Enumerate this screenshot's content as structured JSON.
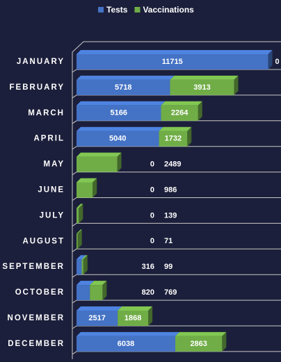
{
  "chart_data": {
    "type": "bar",
    "orientation": "horizontal",
    "stacked": true,
    "categories": [
      "JANUARY",
      "FEBRUARY",
      "MARCH",
      "APRIL",
      "MAY",
      "JUNE",
      "JULY",
      "AUGUST",
      "SEPTEMBER",
      "OCTOBER",
      "NOVEMBER",
      "DECEMBER"
    ],
    "series": [
      {
        "name": "Tests",
        "color": "#4472c4",
        "values": [
          11715,
          5718,
          5166,
          5040,
          0,
          0,
          0,
          0,
          316,
          820,
          2517,
          6038
        ]
      },
      {
        "name": "Vaccinations",
        "color": "#70ad47",
        "values": [
          0,
          3913,
          2264,
          1732,
          2489,
          986,
          139,
          71,
          99,
          769,
          1868,
          2863
        ]
      }
    ],
    "xlim": [
      0,
      12500
    ],
    "legend": "top"
  }
}
